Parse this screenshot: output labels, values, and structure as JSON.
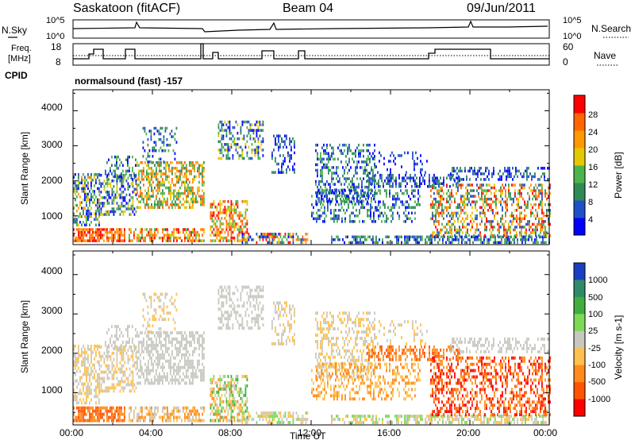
{
  "header": {
    "station": "Saskatoon (fitACF)",
    "beam": "Beam 04",
    "date": "09/Jun/2011"
  },
  "noise_panel": {
    "left_label": "N.Sky",
    "right_label": "N.Search",
    "left_ticks": [
      "10^5",
      "10^0"
    ],
    "right_ticks": [
      "10^5",
      "10^0"
    ]
  },
  "freq_panel": {
    "left_label_line1": "Freq.",
    "left_label_line2": "[MHz]",
    "right_label": "Nave",
    "left_ticks": [
      "18",
      "8"
    ],
    "right_ticks": [
      "60",
      "0"
    ]
  },
  "cpid": {
    "label": "CPID",
    "program": "normalsound (fast) -157"
  },
  "power_panel": {
    "ylabel": "Slant Range [km]",
    "y_ticks": [
      "4000",
      "3000",
      "2000",
      "1000"
    ],
    "colorbar_label": "Power [dB]",
    "colorbar_ticks": [
      "28",
      "24",
      "20",
      "16",
      "12",
      "8",
      "4"
    ],
    "colors": [
      "#0000ff",
      "#2050c8",
      "#2f8a55",
      "#4db34d",
      "#e6c800",
      "#ff9900",
      "#ff6600",
      "#ff0000"
    ]
  },
  "velocity_panel": {
    "ylabel": "Slant Range [km]",
    "y_ticks": [
      "4000",
      "3000",
      "2000",
      "1000"
    ],
    "colorbar_label": "Velocity [m s-1]",
    "colorbar_ticks": [
      "1000",
      "500",
      "100",
      "25",
      "-25",
      "-100",
      "-500",
      "-1000"
    ],
    "colors": [
      "#1a3fc2",
      "#2f8a6a",
      "#3fae3f",
      "#7ed957",
      "#c8c8c0",
      "#ffc04d",
      "#ff8c1a",
      "#ff5500",
      "#ff0000"
    ]
  },
  "x_axis": {
    "label": "Time UT",
    "ticks": [
      "00:00",
      "04:00",
      "08:00",
      "12:00",
      "16:00",
      "20:00",
      "00:00"
    ]
  },
  "chart_data": {
    "type": "heatmap",
    "title": "Saskatoon (fitACF) Beam 04 09/Jun/2011",
    "x": {
      "label": "Time UT",
      "range_hours": [
        0,
        24
      ],
      "ticks": [
        "00:00",
        "04:00",
        "08:00",
        "12:00",
        "16:00",
        "20:00",
        "00:00"
      ]
    },
    "y": {
      "label": "Slant Range [km]",
      "range_km": [
        180,
        4600
      ],
      "ticks": [
        1000,
        2000,
        3000,
        4000
      ]
    },
    "panels": [
      {
        "name": "Power",
        "unit": "dB",
        "color_range": [
          0,
          30
        ]
      },
      {
        "name": "Velocity",
        "unit": "m s-1",
        "color_levels": [
          -1000,
          -500,
          -100,
          -25,
          25,
          100,
          500,
          1000
        ]
      }
    ],
    "frequency_MHz": {
      "axis_range": [
        8,
        18
      ],
      "typical": 10.5,
      "steps_to": 13
    },
    "nave_axis_range": [
      0,
      60
    ],
    "data_gap_hours": [
      6.6,
      6.9
    ]
  }
}
